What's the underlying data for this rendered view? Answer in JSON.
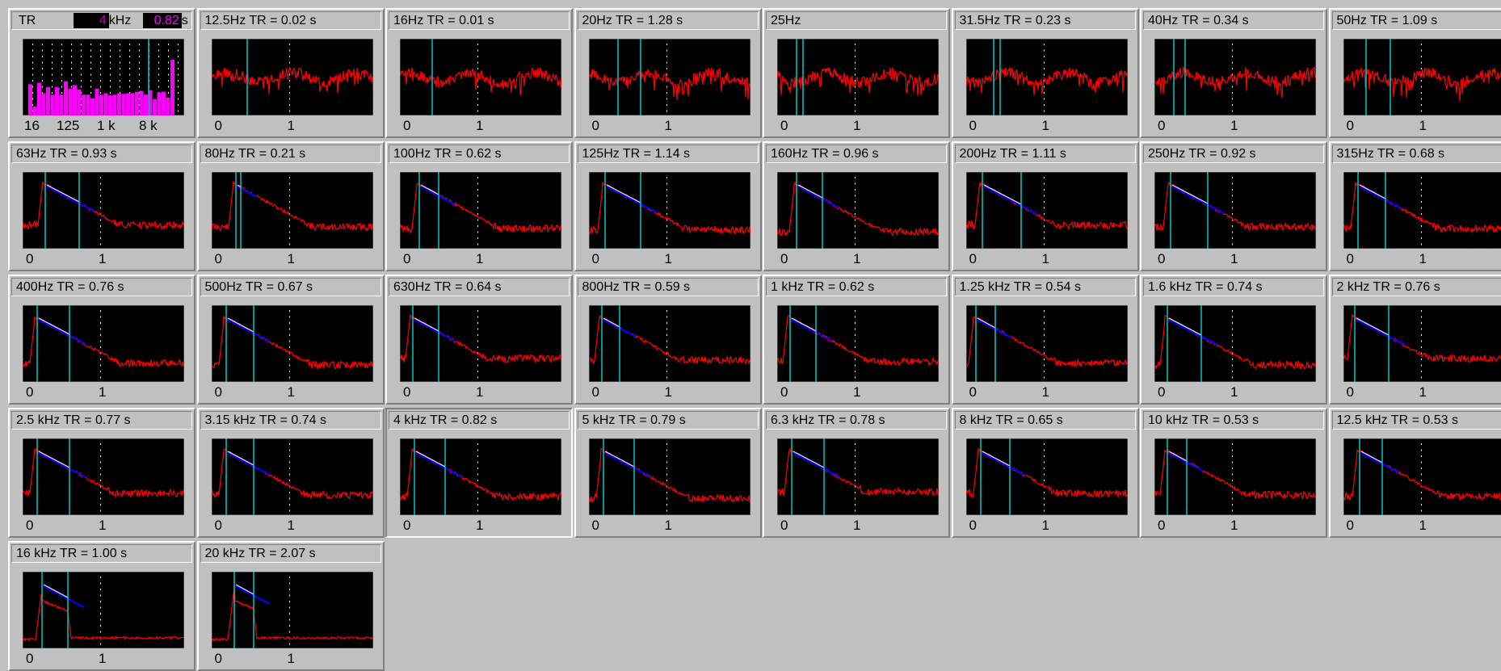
{
  "colors": {
    "decay": "#ff0000",
    "fit": "#0000ff",
    "marker": "#00c8c8",
    "regress": "#ffffff",
    "histogram": "#ff00ff",
    "background": "#c0c0c0"
  },
  "summary": {
    "label": "TR",
    "freq_value": "4",
    "freq_unit": "kHz",
    "tr_value": "0.82",
    "tr_unit": "s",
    "ticks": [
      "16",
      "125",
      "1 k",
      "8 k"
    ],
    "bars": [
      0.42,
      0.12,
      0.44,
      0.3,
      0.38,
      0.28,
      0.38,
      0.28,
      0.46,
      0.36,
      0.41,
      0.35,
      0.28,
      0.28,
      0.23,
      0.36,
      0.28,
      0.3,
      0.27,
      0.28,
      0.3,
      0.29,
      0.3,
      0.3,
      0.32,
      0.33,
      0.28,
      0.34,
      0.22,
      0.31,
      0.32,
      0.24,
      0.75
    ]
  },
  "x_ticks": [
    "0",
    "1"
  ],
  "bands": [
    {
      "label": "12.5Hz  TR = 0.02 s",
      "type": "noisy",
      "m": [
        0.22
      ]
    },
    {
      "label": "16Hz  TR = 0.01 s",
      "type": "noisy",
      "m": [
        0.2
      ]
    },
    {
      "label": "20Hz  TR = 1.28 s",
      "type": "noisy",
      "m": [
        0.18,
        0.32
      ]
    },
    {
      "label": "25Hz",
      "type": "noisy",
      "m": [
        0.12,
        0.16
      ]
    },
    {
      "label": "31.5Hz  TR = 0.23 s",
      "type": "noisy",
      "m": [
        0.17,
        0.21
      ]
    },
    {
      "label": "40Hz  TR = 0.34 s",
      "type": "noisy",
      "m": [
        0.12,
        0.19
      ]
    },
    {
      "label": "50Hz  TR = 1.09 s",
      "type": "noisy",
      "m": [
        0.14,
        0.29
      ]
    },
    {
      "label": "63Hz  TR = 0.93 s",
      "type": "decay",
      "m": [
        0.14,
        0.35
      ]
    },
    {
      "label": "80Hz  TR = 0.21 s",
      "type": "decay",
      "m": [
        0.15,
        0.18
      ]
    },
    {
      "label": "100Hz  TR = 0.62 s",
      "type": "decay",
      "m": [
        0.12,
        0.24
      ]
    },
    {
      "label": "125Hz  TR = 1.14 s",
      "type": "decay",
      "m": [
        0.1,
        0.32
      ]
    },
    {
      "label": "160Hz  TR = 0.96 s",
      "type": "decay",
      "m": [
        0.12,
        0.28
      ]
    },
    {
      "label": "200Hz  TR = 1.11 s",
      "type": "decay",
      "m": [
        0.1,
        0.34
      ]
    },
    {
      "label": "250Hz  TR = 0.92 s",
      "type": "decay",
      "m": [
        0.1,
        0.33
      ]
    },
    {
      "label": "315Hz  TR = 0.68 s",
      "type": "decay",
      "m": [
        0.09,
        0.26
      ]
    },
    {
      "label": "400Hz  TR = 0.76 s",
      "type": "decay",
      "m": [
        0.09,
        0.29
      ]
    },
    {
      "label": "500Hz  TR = 0.67 s",
      "type": "decay",
      "m": [
        0.09,
        0.26
      ]
    },
    {
      "label": "630Hz  TR = 0.64 s",
      "type": "decay",
      "m": [
        0.08,
        0.24
      ]
    },
    {
      "label": "800Hz  TR = 0.59 s",
      "type": "decay",
      "m": [
        0.08,
        0.19
      ]
    },
    {
      "label": "1 kHz  TR = 0.62 s",
      "type": "decay",
      "m": [
        0.08,
        0.24
      ]
    },
    {
      "label": "1.25 kHz  TR = 0.54 s",
      "type": "decay",
      "m": [
        0.06,
        0.18
      ]
    },
    {
      "label": "1.6 kHz  TR = 0.74 s",
      "type": "decay",
      "m": [
        0.08,
        0.29
      ]
    },
    {
      "label": "2 kHz  TR = 0.76 s",
      "type": "decay",
      "m": [
        0.07,
        0.28
      ]
    },
    {
      "label": "2.5 kHz  TR = 0.77 s",
      "type": "decay",
      "m": [
        0.09,
        0.29
      ]
    },
    {
      "label": "3.15 kHz  TR = 0.74 s",
      "type": "decay",
      "m": [
        0.09,
        0.26
      ]
    },
    {
      "label": "4 kHz  TR = 0.82 s",
      "type": "decay",
      "m": [
        0.09,
        0.28
      ],
      "selected": true
    },
    {
      "label": "5 kHz  TR = 0.79 s",
      "type": "decay",
      "m": [
        0.09,
        0.28
      ]
    },
    {
      "label": "6.3 kHz  TR = 0.78 s",
      "type": "decay",
      "m": [
        0.09,
        0.29
      ]
    },
    {
      "label": "8 kHz  TR = 0.65 s",
      "type": "decay",
      "m": [
        0.09,
        0.27
      ]
    },
    {
      "label": "10 kHz  TR = 0.53 s",
      "type": "decay",
      "m": [
        0.08,
        0.2
      ]
    },
    {
      "label": "12.5 kHz  TR = 0.53 s",
      "type": "decay",
      "m": [
        0.1,
        0.24
      ]
    },
    {
      "label": "16 kHz  TR = 1.00 s",
      "type": "short",
      "m": [
        0.12,
        0.28
      ]
    },
    {
      "label": "20 kHz  TR = 2.07 s",
      "type": "short",
      "m": [
        0.14,
        0.26
      ]
    }
  ]
}
